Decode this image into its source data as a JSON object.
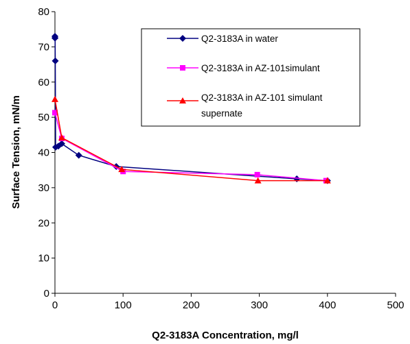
{
  "chart_data": {
    "type": "line",
    "xlabel": "Q2-3183A Concentration, mg/l",
    "ylabel": "Surface Tension, mN/m",
    "xlim": [
      0,
      500
    ],
    "ylim": [
      0,
      80
    ],
    "xticks": [
      0,
      100,
      200,
      300,
      400,
      500
    ],
    "yticks": [
      0,
      10,
      20,
      30,
      40,
      50,
      60,
      70,
      80
    ],
    "grid": false,
    "legend_position": "top-right",
    "series": [
      {
        "name": "Q2-3183A in water",
        "color": "#000080",
        "marker": "diamond",
        "x": [
          0,
          0,
          0.2,
          0.5,
          1,
          5,
          10,
          35,
          90,
          355,
          400
        ],
        "y": [
          73,
          72.5,
          72.5,
          66,
          41.5,
          41.8,
          42.5,
          39.2,
          36,
          32.5,
          32
        ]
      },
      {
        "name": "Q2-3183A in AZ-101simulant",
        "color": "#ff00ff",
        "marker": "square",
        "x": [
          0,
          10,
          100,
          297,
          398
        ],
        "y": [
          51.3,
          44,
          34.6,
          33.7,
          32
        ]
      },
      {
        "name": "Q2-3183A in AZ-101 simulant supernate",
        "legend_lines": [
          "Q2-3183A in AZ-101 simulant",
          "supernate"
        ],
        "color": "#ff0000",
        "marker": "triangle",
        "x": [
          0,
          10,
          98,
          298,
          400
        ],
        "y": [
          55.1,
          44.2,
          35.2,
          32,
          32
        ]
      }
    ]
  }
}
